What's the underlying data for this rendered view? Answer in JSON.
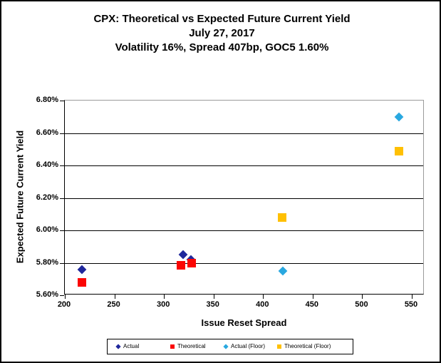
{
  "chart_data": {
    "type": "scatter",
    "title_lines": [
      "CPX: Theoretical vs Expected Future Current Yield",
      "July 27, 2017",
      "Volatility 16%, Spread 407bp, GOC5 1.60%"
    ],
    "xlabel": "Issue Reset Spread",
    "ylabel": "Expected Future Current Yield",
    "xlim": [
      200,
      550
    ],
    "ylim_percent": [
      5.6,
      6.8
    ],
    "grid": "horizontal",
    "legend_position": "bottom",
    "x_ticks": [
      {
        "v": 200,
        "label": "200"
      },
      {
        "v": 250,
        "label": "250"
      },
      {
        "v": 300,
        "label": "300"
      },
      {
        "v": 350,
        "label": "350"
      },
      {
        "v": 400,
        "label": "400"
      },
      {
        "v": 450,
        "label": "450"
      },
      {
        "v": 500,
        "label": "500"
      },
      {
        "v": 550,
        "label": "550"
      }
    ],
    "y_ticks": [
      {
        "v": 6.8,
        "label": "6.80%"
      },
      {
        "v": 6.6,
        "label": "6.60%"
      },
      {
        "v": 6.4,
        "label": "6.40%"
      },
      {
        "v": 6.2,
        "label": "6.20%"
      },
      {
        "v": 6.0,
        "label": "6.00%"
      },
      {
        "v": 5.8,
        "label": "5.80%"
      },
      {
        "v": 5.6,
        "label": "5.60%"
      }
    ],
    "series": [
      {
        "name": "Actual",
        "marker": "diamond",
        "color": "#20289C",
        "points": [
          {
            "x": 217,
            "y": 5.76
          },
          {
            "x": 319,
            "y": 5.85
          },
          {
            "x": 327,
            "y": 5.82
          }
        ]
      },
      {
        "name": "Theoretical",
        "marker": "square",
        "color": "#FB0604",
        "points": [
          {
            "x": 217,
            "y": 5.68
          },
          {
            "x": 317,
            "y": 5.785
          },
          {
            "x": 328,
            "y": 5.8
          }
        ]
      },
      {
        "name": "Actual (Floor)",
        "marker": "diamond",
        "color": "#29A8E0",
        "points": [
          {
            "x": 420,
            "y": 5.75
          },
          {
            "x": 537,
            "y": 6.7
          }
        ]
      },
      {
        "name": "Theoretical (Floor)",
        "marker": "square",
        "color": "#FFC003",
        "points": [
          {
            "x": 419,
            "y": 6.08
          },
          {
            "x": 537,
            "y": 6.49
          }
        ]
      }
    ]
  }
}
